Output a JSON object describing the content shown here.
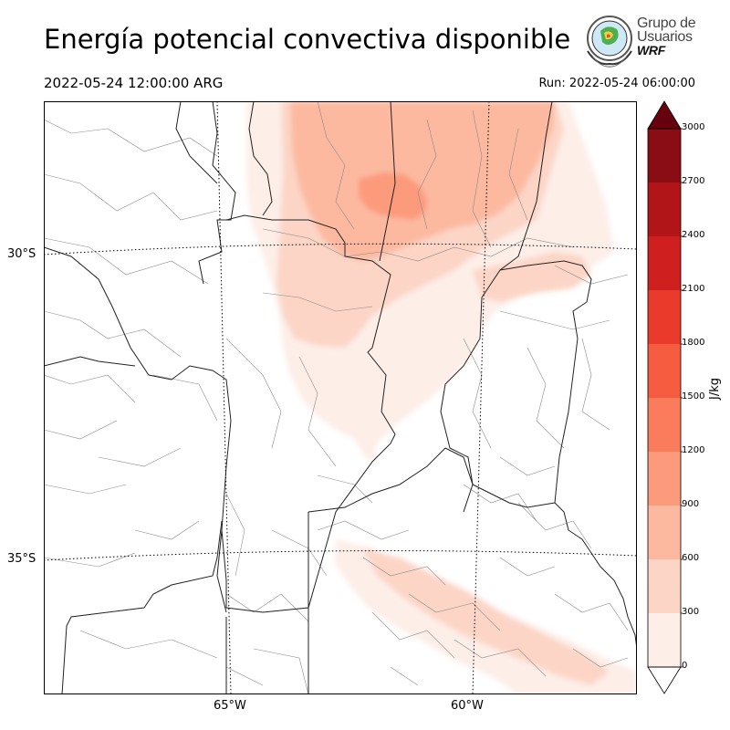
{
  "header": {
    "title": "Energía potencial convectiva disponible",
    "valid_time": "2022-05-24 12:00:00 ARG",
    "run_time": "Run: 2022-05-24 06:00:00"
  },
  "logo": {
    "line1": "Grupo de",
    "line2": "Usuarios",
    "line3": "WRF"
  },
  "map": {
    "lat_labels": [
      "30°S",
      "35°S"
    ],
    "lon_labels": [
      "65°W",
      "60°W"
    ]
  },
  "colorbar": {
    "unit": "J/kg",
    "ticks": [
      "0",
      "300",
      "600",
      "900",
      "1200",
      "1500",
      "1800",
      "2100",
      "2400",
      "2700",
      "3000"
    ],
    "levels": [
      {
        "from": 0,
        "to": 300,
        "color": "#fdeee8"
      },
      {
        "from": 300,
        "to": 600,
        "color": "#fcd5c6"
      },
      {
        "from": 600,
        "to": 900,
        "color": "#fcb9a0"
      },
      {
        "from": 900,
        "to": 1200,
        "color": "#fc9a7c"
      },
      {
        "from": 1200,
        "to": 1500,
        "color": "#fb7c5c"
      },
      {
        "from": 1500,
        "to": 1800,
        "color": "#f65c40"
      },
      {
        "from": 1800,
        "to": 2100,
        "color": "#ea3a2c"
      },
      {
        "from": 2100,
        "to": 2400,
        "color": "#d01f1f"
      },
      {
        "from": 2400,
        "to": 2700,
        "color": "#b11518"
      },
      {
        "from": 2700,
        "to": 3000,
        "color": "#8b0d14"
      }
    ],
    "over_color": "#67000d"
  }
}
